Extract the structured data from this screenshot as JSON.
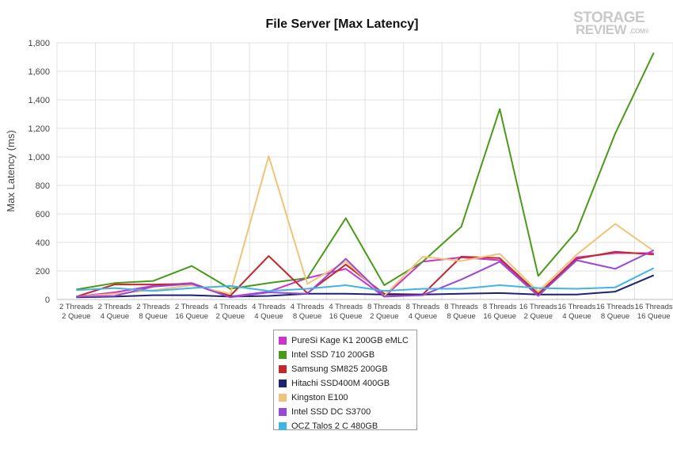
{
  "chart_data": {
    "type": "line",
    "title": "File Server [Max Latency]",
    "ylabel": "Max Latency (ms)",
    "xlabel": "",
    "ylim": [
      0,
      1800
    ],
    "yticks": [
      0,
      200,
      400,
      600,
      800,
      1000,
      1200,
      1400,
      1600,
      1800
    ],
    "ytick_labels": [
      "0",
      "200",
      "400",
      "600",
      "800",
      "1,000",
      "1,200",
      "1,400",
      "1,600",
      "1,800"
    ],
    "grid": true,
    "legend_position": "bottom-center",
    "categories": [
      [
        "2 Threads",
        "2 Queue"
      ],
      [
        "2 Threads",
        "4 Queue"
      ],
      [
        "2 Threads",
        "8 Queue"
      ],
      [
        "2 Threads",
        "16 Queue"
      ],
      [
        "4 Threads",
        "2 Queue"
      ],
      [
        "4 Threads",
        "4 Queue"
      ],
      [
        "4 Threads",
        "8 Queue"
      ],
      [
        "4 Threads",
        "16 Queue"
      ],
      [
        "8 Threads",
        "2 Queue"
      ],
      [
        "8 Threads",
        "4 Queue"
      ],
      [
        "8 Threads",
        "8 Queue"
      ],
      [
        "8 Threads",
        "16 Queue"
      ],
      [
        "16 Threads",
        "2 Queue"
      ],
      [
        "16 Threads",
        "4 Queue"
      ],
      [
        "16 Threads",
        "8 Queue"
      ],
      [
        "16 Threads",
        "16 Queue"
      ]
    ],
    "series": [
      {
        "name": "PureSi Kage K1 200GB eMLC",
        "color": "#cc33cc",
        "values": [
          20,
          50,
          95,
          115,
          20,
          55,
          150,
          215,
          20,
          265,
          295,
          275,
          35,
          295,
          325,
          325
        ]
      },
      {
        "name": "Intel SSD 710 200GB",
        "color": "#4a9a1a",
        "values": [
          70,
          115,
          130,
          235,
          75,
          115,
          150,
          570,
          100,
          265,
          510,
          1335,
          165,
          480,
          1165,
          1730
        ]
      },
      {
        "name": "Samsung SM825 200GB",
        "color": "#c42828",
        "values": [
          20,
          105,
          105,
          110,
          25,
          305,
          45,
          245,
          40,
          35,
          300,
          290,
          40,
          285,
          335,
          315
        ]
      },
      {
        "name": "Hitachi SSD400M 400GB",
        "color": "#1a2470",
        "values": [
          15,
          20,
          30,
          30,
          20,
          25,
          40,
          40,
          35,
          35,
          40,
          45,
          35,
          35,
          55,
          170
        ]
      },
      {
        "name": "Kingston E100",
        "color": "#f0c478",
        "values": [
          20,
          40,
          65,
          100,
          40,
          1005,
          110,
          265,
          25,
          300,
          270,
          320,
          55,
          315,
          530,
          340
        ]
      },
      {
        "name": "Intel SSD DC S3700",
        "color": "#9a48d8",
        "values": [
          20,
          25,
          90,
          110,
          15,
          50,
          40,
          285,
          20,
          30,
          140,
          265,
          25,
          275,
          215,
          345
        ]
      },
      {
        "name": "OCZ Talos 2 C 480GB",
        "color": "#40b4e4",
        "values": [
          65,
          80,
          60,
          80,
          95,
          60,
          75,
          100,
          60,
          75,
          75,
          100,
          80,
          75,
          85,
          220
        ]
      }
    ]
  },
  "logo": {
    "line1": "STORAGE",
    "line2": "REVIEW",
    "suffix": ".COM®"
  }
}
